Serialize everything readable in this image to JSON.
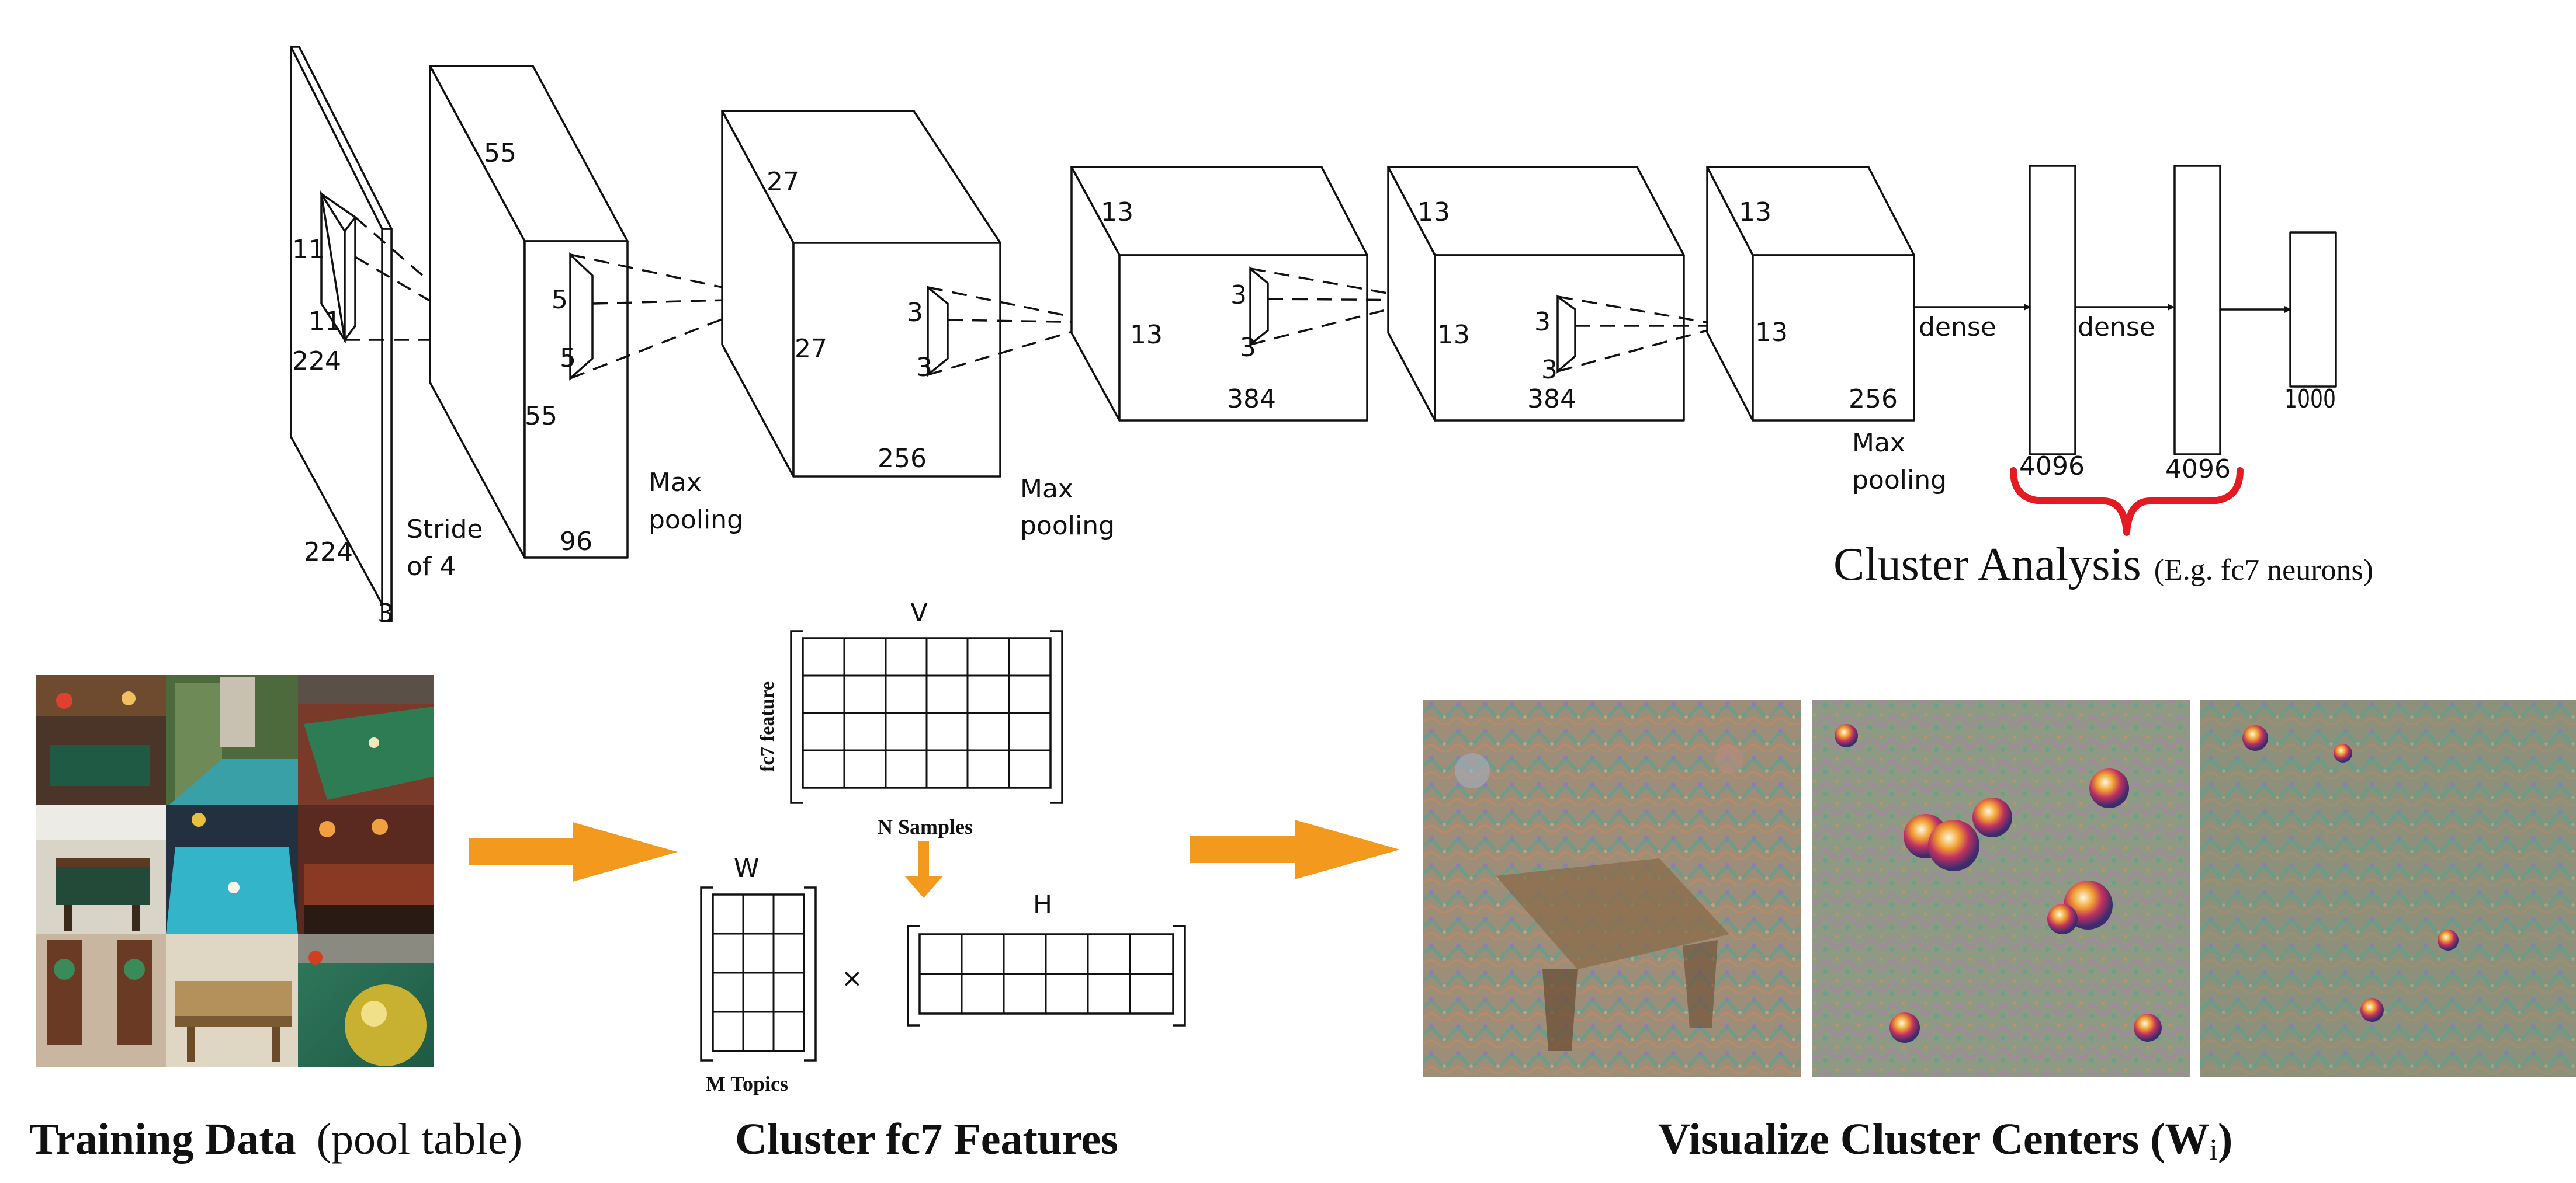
{
  "cnn": {
    "input_h": "224",
    "input_w": "224",
    "input_d": "3",
    "k1a": "11",
    "k1b": "11",
    "stride_1": "Stride",
    "stride_2": "of 4",
    "c1_55a": "55",
    "c1_55b": "55",
    "c1_96": "96",
    "k2a": "5",
    "k2b": "5",
    "mp1_1": "Max",
    "mp1_2": "pooling",
    "c2_27a": "27",
    "c2_27b": "27",
    "c2_256": "256",
    "k3a": "3",
    "k3b": "3",
    "mp2_1": "Max",
    "mp2_2": "pooling",
    "c3_13a": "13",
    "c3_13b": "13",
    "c3_384": "384",
    "k4a": "3",
    "k4b": "3",
    "c4_13a": "13",
    "c4_13b": "13",
    "c4_384": "384",
    "k5a": "3",
    "k5b": "3",
    "c5_13a": "13",
    "c5_13b": "13",
    "c5_256": "256",
    "mp3_1": "Max",
    "mp3_2": "pooling",
    "dense1": "dense",
    "dense2": "dense",
    "fc6": "4096",
    "fc7": "4096",
    "out": "1000"
  },
  "cluster_analysis": {
    "main": "Cluster Analysis",
    "sub": "(E.g. fc7 neurons)",
    "brace_color": "#e41b23"
  },
  "nmf": {
    "v": "V",
    "w": "W",
    "h": "H",
    "times": "×",
    "feature_axis": "fc7 feature",
    "samples": "N Samples",
    "topics": "M Topics"
  },
  "arrows": {
    "color": "#f39a1e"
  },
  "captions": {
    "training_bold": "Training Data",
    "training_rest": "(pool table)",
    "cluster": "Cluster fc7 Features",
    "visualize": "Visualize Cluster Centers (W",
    "visualize_sub": "i",
    "visualize_end": ")"
  }
}
